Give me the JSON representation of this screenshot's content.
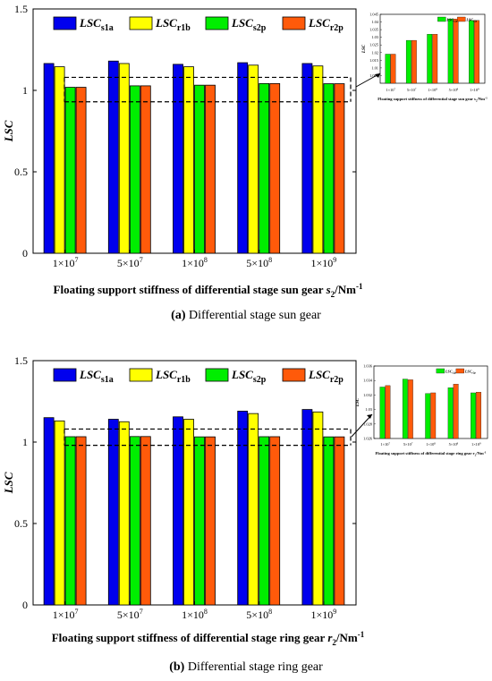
{
  "chart_data": [
    {
      "type": "bar",
      "panel": "a",
      "ylabel": "LSC",
      "xlabel_prefix": "Floating support stiffness of differential stage sun gear ",
      "xlabel_var": "s",
      "xlabel_sub": "2",
      "xlabel_unit": "/Nm",
      "xlabel_sup": "-1",
      "ylim": [
        0,
        1.5
      ],
      "yticks": [
        "0",
        "0.5",
        "1",
        "1.5"
      ],
      "categories": [
        {
          "base": "1×10",
          "exp": "7"
        },
        {
          "base": "5×10",
          "exp": "7"
        },
        {
          "base": "1×10",
          "exp": "8"
        },
        {
          "base": "5×10",
          "exp": "8"
        },
        {
          "base": "1×10",
          "exp": "9"
        }
      ],
      "series": [
        {
          "main": "LSC",
          "sub": "s1a",
          "color": "#0000ee",
          "values": [
            1.165,
            1.18,
            1.16,
            1.17,
            1.165
          ]
        },
        {
          "main": "LSC",
          "sub": "r1b",
          "color": "#ffff00",
          "values": [
            1.145,
            1.165,
            1.145,
            1.155,
            1.15
          ]
        },
        {
          "main": "LSC",
          "sub": "s2p",
          "color": "#00ee00",
          "values": [
            1.019,
            1.028,
            1.032,
            1.042,
            1.041
          ]
        },
        {
          "main": "LSC",
          "sub": "r2p",
          "color": "#ff5a0a",
          "values": [
            1.019,
            1.028,
            1.032,
            1.042,
            1.041
          ]
        }
      ],
      "zoom_box": [
        0.93,
        1.08
      ],
      "inset": {
        "ylabel": "LSC",
        "yticks": [
          "1.005",
          "1.01",
          "1.015",
          "1.02",
          "1.025",
          "1.03",
          "1.035",
          "1.04",
          "1.045"
        ],
        "ylim": [
          1.0,
          1.045
        ],
        "xlabel": "Floating support stiffness of differential stage sun gear  s",
        "xlabel_sub": "2",
        "xlabel_unit": "/Nm",
        "xlabel_sup": "-1",
        "categories": [
          {
            "base": "1×10",
            "exp": "7"
          },
          {
            "base": "5×10",
            "exp": "7"
          },
          {
            "base": "1×10",
            "exp": "8"
          },
          {
            "base": "5×10",
            "exp": "8"
          },
          {
            "base": "1×10",
            "exp": "9"
          }
        ],
        "legend": [
          {
            "main": "LSC",
            "sub": "s2p",
            "color": "#00ee00"
          },
          {
            "main": "LSC",
            "sub": "r2p",
            "color": "#ff5a0a"
          }
        ],
        "series": [
          {
            "color": "#00ee00",
            "values": [
              1.019,
              1.028,
              1.032,
              1.042,
              1.041
            ]
          },
          {
            "color": "#ff5a0a",
            "values": [
              1.019,
              1.028,
              1.032,
              1.042,
              1.041
            ]
          }
        ]
      }
    },
    {
      "type": "bar",
      "panel": "b",
      "ylabel": "LSC",
      "xlabel_prefix": "Floating support stiffness of differential stage ring gear ",
      "xlabel_var": "r",
      "xlabel_sub": "2",
      "xlabel_unit": "/Nm",
      "xlabel_sup": "-1",
      "ylim": [
        0,
        1.5
      ],
      "yticks": [
        "0",
        "0.5",
        "1",
        "1.5"
      ],
      "categories": [
        {
          "base": "1×10",
          "exp": "7"
        },
        {
          "base": "5×10",
          "exp": "7"
        },
        {
          "base": "1×10",
          "exp": "8"
        },
        {
          "base": "5×10",
          "exp": "8"
        },
        {
          "base": "1×10",
          "exp": "9"
        }
      ],
      "series": [
        {
          "main": "LSC",
          "sub": "s1a",
          "color": "#0000ee",
          "values": [
            1.15,
            1.14,
            1.155,
            1.19,
            1.2
          ]
        },
        {
          "main": "LSC",
          "sub": "r1b",
          "color": "#ffff00",
          "values": [
            1.13,
            1.125,
            1.14,
            1.175,
            1.185
          ]
        },
        {
          "main": "LSC",
          "sub": "s2p",
          "color": "#00ee00",
          "values": [
            1.033,
            1.034,
            1.032,
            1.033,
            1.032
          ]
        },
        {
          "main": "LSC",
          "sub": "r2p",
          "color": "#ff5a0a",
          "values": [
            1.033,
            1.034,
            1.032,
            1.033,
            1.032
          ]
        }
      ],
      "zoom_box": [
        0.98,
        1.08
      ],
      "inset": {
        "ylabel": "LSC",
        "yticks": [
          "1.026",
          "1.028",
          "1.03",
          "1.032",
          "1.034",
          "1.036"
        ],
        "ylim": [
          1.026,
          1.036
        ],
        "xlabel": "Floating support stiffness of differential stage ring gear  r",
        "xlabel_sub": "2",
        "xlabel_unit": "/Nm",
        "xlabel_sup": "-1",
        "categories": [
          {
            "base": "1×10",
            "exp": "7"
          },
          {
            "base": "5×10",
            "exp": "7"
          },
          {
            "base": "1×10",
            "exp": "8"
          },
          {
            "base": "5×10",
            "exp": "8"
          },
          {
            "base": "1×10",
            "exp": "9"
          }
        ],
        "legend": [
          {
            "main": "LSC",
            "sub": "s2p",
            "color": "#00ee00"
          },
          {
            "main": "LSC",
            "sub": "r2p",
            "color": "#ff5a0a"
          }
        ],
        "series": [
          {
            "color": "#00ee00",
            "values": [
              1.0331,
              1.0342,
              1.0322,
              1.033,
              1.0323
            ]
          },
          {
            "color": "#ff5a0a",
            "values": [
              1.0333,
              1.0341,
              1.0323,
              1.0335,
              1.0324
            ]
          }
        ]
      }
    }
  ],
  "captions": [
    {
      "label": "(a)",
      "text": " Differential stage sun gear"
    },
    {
      "label": "(b)",
      "text": " Differential stage ring gear"
    }
  ]
}
